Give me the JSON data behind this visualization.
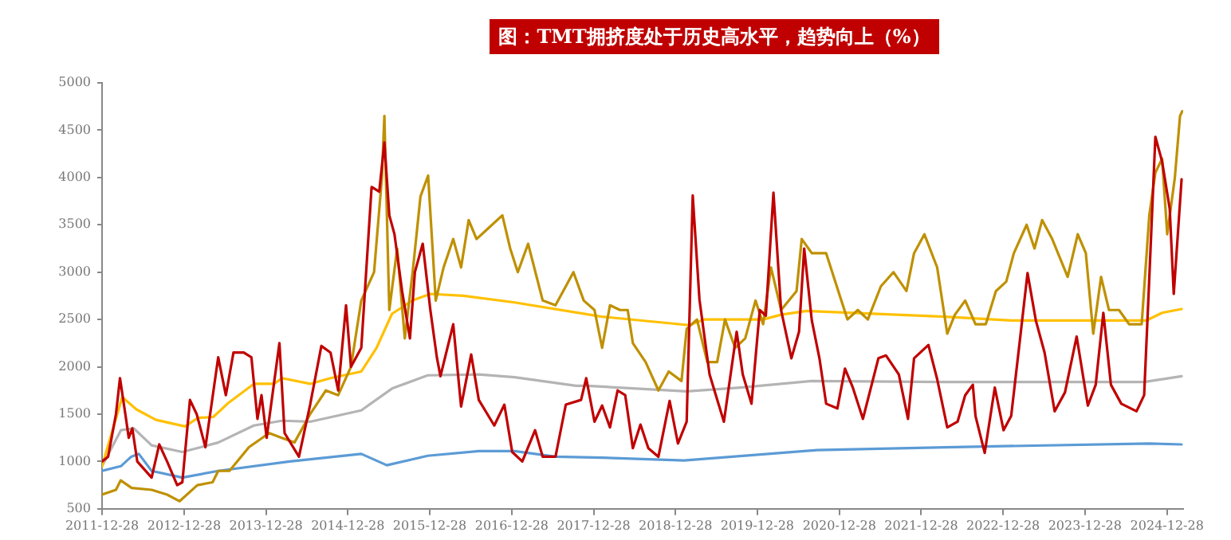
{
  "chart_data": {
    "type": "line",
    "title": "图：TMT拥挤度处于历史高水平，趋势向上（%）",
    "xlim": [
      "2011-12-28",
      "2025-03-10"
    ],
    "xticks": [
      "2011-12-28",
      "2012-12-28",
      "2013-12-28",
      "2014-12-28",
      "2015-12-28",
      "2016-12-28",
      "2017-12-28",
      "2018-12-28",
      "2019-12-28",
      "2020-12-28",
      "2021-12-28",
      "2022-12-28",
      "2023-12-28",
      "2024-12-28"
    ],
    "ylim": [
      500,
      5000
    ],
    "yticks": [
      500,
      1000,
      1500,
      2000,
      2500,
      3000,
      3500,
      4000,
      4500,
      5000
    ],
    "grid": false,
    "legend": false,
    "marker": "none",
    "line_style": "solid",
    "series": [
      {
        "color": "#5b9bd5",
        "x": [
          "2011-12-28",
          "2012-03-21",
          "2012-05-06",
          "2012-06-09",
          "2012-08-05",
          "2012-12-20",
          "2013-05-29",
          "2014-04-13",
          "2015-02-26",
          "2015-06-20",
          "2015-12-19",
          "2016-08-03",
          "2017-01-10",
          "2017-07-11",
          "2018-02-03",
          "2019-02-04",
          "2020-09-19",
          "2022-04-12",
          "2024-10-10",
          "2025-03-03"
        ],
        "values": [
          900,
          950,
          1050,
          1080,
          900,
          830,
          900,
          1000,
          1080,
          960,
          1060,
          1110,
          1110,
          1050,
          1040,
          1010,
          1120,
          1150,
          1190,
          1180
        ]
      },
      {
        "color": "#b4b4b4",
        "x": [
          "2011-12-28",
          "2012-03-21",
          "2012-05-17",
          "2012-08-05",
          "2012-12-20",
          "2013-05-29",
          "2013-11-04",
          "2014-03-09",
          "2014-07-13",
          "2015-02-26",
          "2015-07-13",
          "2015-12-19",
          "2016-08-03",
          "2017-01-10",
          "2017-10-11",
          "2017-11-28",
          "2019-02-16",
          "2019-10-13",
          "2020-08-27",
          "2022-04-12",
          "2023-02-02",
          "2024-09-17",
          "2025-03-03"
        ],
        "values": [
          950,
          1330,
          1350,
          1170,
          1100,
          1200,
          1380,
          1430,
          1420,
          1540,
          1770,
          1910,
          1920,
          1890,
          1800,
          1800,
          1740,
          1780,
          1850,
          1840,
          1840,
          1840,
          1900
        ]
      },
      {
        "color": "#ffc000",
        "x": [
          "2011-12-28",
          "2012-03-27",
          "2012-05-29",
          "2012-08-24",
          "2013-01-01",
          "2013-02-27",
          "2013-05-07",
          "2013-07-14",
          "2013-11-04",
          "2014-02-03",
          "2014-03-09",
          "2014-07-13",
          "2014-10-12",
          "2015-02-26",
          "2015-05-05",
          "2015-07-13",
          "2015-10-12",
          "2015-12-31",
          "2016-05-27",
          "2017-01-10",
          "2018-02-03",
          "2019-02-27",
          "2019-05-06",
          "2020-01-23",
          "2020-04-12",
          "2020-08-04",
          "2022-04-12",
          "2023-02-02",
          "2024-09-28",
          "2024-12-06",
          "2025-03-03"
        ],
        "values": [
          950,
          1680,
          1550,
          1440,
          1370,
          1460,
          1470,
          1620,
          1820,
          1820,
          1880,
          1820,
          1880,
          1950,
          2200,
          2560,
          2700,
          2770,
          2750,
          2680,
          2530,
          2440,
          2500,
          2500,
          2550,
          2590,
          2530,
          2490,
          2490,
          2570,
          2610
        ]
      },
      {
        "color": "#bf9000",
        "x": [
          "2011-12-28",
          "2012-02-28",
          "2012-03-20",
          "2012-05-08",
          "2012-08-05",
          "2012-10-13",
          "2012-12-08",
          "2013-02-25",
          "2013-05-04",
          "2013-05-29",
          "2013-07-18",
          "2013-10-13",
          "2014-01-11",
          "2014-03-08",
          "2014-05-04",
          "2014-07-13",
          "2014-09-21",
          "2014-11-15",
          "2015-01-11",
          "2015-02-26",
          "2015-04-24",
          "2015-05-29",
          "2015-06-09",
          "2015-07-01",
          "2015-08-05",
          "2015-09-08",
          "2015-10-13",
          "2015-11-17",
          "2015-12-21",
          "2016-01-24",
          "2016-02-28",
          "2016-04-11",
          "2016-05-16",
          "2016-06-19",
          "2016-07-24",
          "2016-09-08",
          "2016-11-16",
          "2016-12-21",
          "2017-01-24",
          "2017-03-11",
          "2017-05-15",
          "2017-07-11",
          "2017-08-26",
          "2017-09-29",
          "2017-11-14",
          "2018-01-01",
          "2018-02-04",
          "2018-03-11",
          "2018-04-25",
          "2018-05-29",
          "2018-06-21",
          "2018-08-17",
          "2018-10-13",
          "2018-11-28",
          "2019-01-24",
          "2019-02-16",
          "2019-04-03",
          "2019-05-19",
          "2019-07-02",
          "2019-08-06",
          "2019-09-20",
          "2019-11-04",
          "2019-12-20",
          "2020-01-23",
          "2020-02-27",
          "2020-04-12",
          "2020-06-20",
          "2020-07-13",
          "2020-08-27",
          "2020-10-30",
          "2020-12-30",
          "2021-02-02",
          "2021-03-20",
          "2021-05-04",
          "2021-07-01",
          "2021-08-26",
          "2021-10-23",
          "2021-11-26",
          "2022-01-11",
          "2022-03-09",
          "2022-04-23",
          "2022-05-27",
          "2022-07-12",
          "2022-08-27",
          "2022-10-12",
          "2022-11-26",
          "2023-01-11",
          "2023-02-14",
          "2023-04-12",
          "2023-05-17",
          "2023-06-20",
          "2023-08-04",
          "2023-10-12",
          "2023-11-26",
          "2024-01-01",
          "2024-02-03",
          "2024-03-09",
          "2024-04-13",
          "2024-05-28",
          "2024-07-12",
          "2024-09-06",
          "2024-10-10",
          "2024-11-06",
          "2024-12-06",
          "2024-12-29",
          "2025-02-01",
          "2025-02-24",
          "2025-03-06"
        ],
        "values": [
          650,
          700,
          800,
          720,
          700,
          650,
          580,
          750,
          780,
          900,
          900,
          1150,
          1300,
          1250,
          1200,
          1500,
          1750,
          1700,
          2000,
          2700,
          3000,
          4000,
          4650,
          2600,
          3250,
          2300,
          3000,
          3800,
          4020,
          2700,
          3050,
          3350,
          3050,
          3550,
          3350,
          3450,
          3600,
          3250,
          3000,
          3300,
          2700,
          2650,
          2850,
          3000,
          2700,
          2600,
          2200,
          2650,
          2600,
          2600,
          2250,
          2050,
          1750,
          1950,
          1850,
          2400,
          2500,
          2050,
          2050,
          2500,
          2200,
          2300,
          2700,
          2450,
          3050,
          2600,
          2800,
          3350,
          3200,
          3200,
          2750,
          2500,
          2600,
          2500,
          2850,
          3000,
          2800,
          3200,
          3400,
          3050,
          2350,
          2550,
          2700,
          2450,
          2450,
          2800,
          2900,
          3200,
          3500,
          3250,
          3550,
          3350,
          2950,
          3400,
          3200,
          2350,
          2950,
          2600,
          2600,
          2450,
          2450,
          3600,
          4050,
          4200,
          3400,
          4000,
          4650,
          4700
        ]
      },
      {
        "color": "#c00000",
        "x": [
          "2011-12-28",
          "2012-01-24",
          "2012-02-28",
          "2012-03-17",
          "2012-04-13",
          "2012-04-25",
          "2012-05-11",
          "2012-06-02",
          "2012-08-05",
          "2012-09-08",
          "2012-10-13",
          "2012-11-27",
          "2012-12-20",
          "2013-01-23",
          "2013-02-22",
          "2013-04-02",
          "2013-05-29",
          "2013-07-02",
          "2013-08-05",
          "2013-09-20",
          "2013-10-24",
          "2013-11-20",
          "2013-12-08",
          "2013-12-31",
          "2014-02-26",
          "2014-03-21",
          "2014-05-24",
          "2014-07-13",
          "2014-09-01",
          "2014-10-12",
          "2014-11-15",
          "2014-12-20",
          "2015-01-11",
          "2015-02-26",
          "2015-04-13",
          "2015-05-17",
          "2015-06-09",
          "2015-07-01",
          "2015-07-24",
          "2015-08-27",
          "2015-10-01",
          "2015-10-23",
          "2015-11-27",
          "2015-12-31",
          "2016-01-29",
          "2016-02-14",
          "2016-04-11",
          "2016-05-16",
          "2016-06-30",
          "2016-08-03",
          "2016-10-11",
          "2016-11-25",
          "2016-12-30",
          "2017-02-13",
          "2017-04-11",
          "2017-05-15",
          "2017-07-11",
          "2017-08-26",
          "2017-11-02",
          "2017-11-25",
          "2018-01-01",
          "2018-02-04",
          "2018-03-11",
          "2018-04-14",
          "2018-05-18",
          "2018-06-21",
          "2018-07-25",
          "2018-08-29",
          "2018-10-13",
          "2018-12-02",
          "2019-01-08",
          "2019-02-16",
          "2019-03-15",
          "2019-04-14",
          "2019-05-29",
          "2019-08-01",
          "2019-09-27",
          "2019-10-24",
          "2019-12-02",
          "2020-01-08",
          "2020-02-04",
          "2020-03-09",
          "2020-04-12",
          "2020-05-28",
          "2020-07-01",
          "2020-07-24",
          "2020-08-27",
          "2020-09-30",
          "2020-10-30",
          "2020-12-19",
          "2021-01-22",
          "2021-02-26",
          "2021-04-12",
          "2021-06-20",
          "2021-07-24",
          "2021-09-19",
          "2021-10-30",
          "2021-11-26",
          "2022-01-29",
          "2022-03-09",
          "2022-04-23",
          "2022-06-08",
          "2022-07-12",
          "2022-08-15",
          "2022-08-27",
          "2022-10-07",
          "2022-11-21",
          "2022-12-30",
          "2023-02-02",
          "2023-03-09",
          "2023-04-16",
          "2023-05-23",
          "2023-07-01",
          "2023-08-15",
          "2023-09-30",
          "2023-11-21",
          "2024-01-10",
          "2024-02-14",
          "2024-03-19",
          "2024-04-22",
          "2024-06-07",
          "2024-08-14",
          "2024-09-17",
          "2024-10-10",
          "2024-11-06",
          "2024-12-06",
          "2025-01-09",
          "2025-01-27",
          "2025-03-03"
        ],
        "values": [
          1000,
          1050,
          1500,
          1880,
          1450,
          1250,
          1350,
          1000,
          830,
          1180,
          1000,
          750,
          780,
          1650,
          1500,
          1150,
          2100,
          1700,
          2150,
          2150,
          2100,
          1450,
          1700,
          1250,
          2250,
          1300,
          1050,
          1600,
          2220,
          2150,
          1750,
          2650,
          2000,
          2200,
          3900,
          3850,
          4370,
          3600,
          3400,
          2800,
          2300,
          3000,
          3300,
          2600,
          2100,
          1900,
          2450,
          1580,
          2130,
          1650,
          1380,
          1600,
          1100,
          1000,
          1330,
          1050,
          1050,
          1600,
          1650,
          1880,
          1420,
          1590,
          1360,
          1750,
          1700,
          1140,
          1390,
          1140,
          1050,
          1640,
          1190,
          1420,
          3810,
          2710,
          1920,
          1420,
          2370,
          1920,
          1610,
          2600,
          2540,
          3840,
          2600,
          2090,
          2370,
          3250,
          2490,
          2090,
          1610,
          1560,
          1980,
          1780,
          1450,
          2090,
          2120,
          1920,
          1450,
          2090,
          2230,
          1870,
          1360,
          1420,
          1700,
          1810,
          1480,
          1090,
          1780,
          1330,
          1480,
          2200,
          2990,
          2490,
          2150,
          1530,
          1730,
          2320,
          1590,
          1810,
          2570,
          1810,
          1610,
          1530,
          1700,
          2940,
          4430,
          4170,
          3670,
          2770,
          3980
        ]
      }
    ]
  }
}
